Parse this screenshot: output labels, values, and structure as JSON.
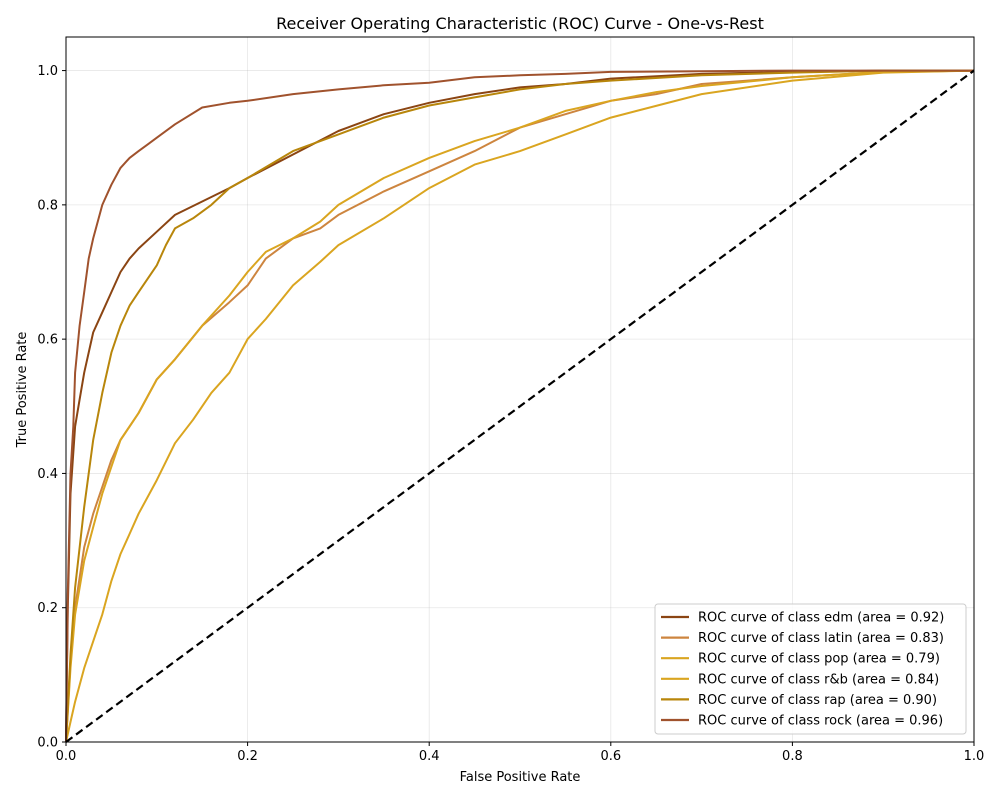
{
  "chart_data": {
    "type": "line",
    "title": "Receiver Operating Characteristic (ROC) Curve - One-vs-Rest",
    "xlabel": "False Positive Rate",
    "ylabel": "True Positive Rate",
    "xlim": [
      0.0,
      1.0
    ],
    "ylim": [
      0.0,
      1.05
    ],
    "xticks": [
      0.0,
      0.2,
      0.4,
      0.6,
      0.8,
      1.0
    ],
    "yticks": [
      0.0,
      0.2,
      0.4,
      0.6,
      0.8,
      1.0
    ],
    "xtick_labels": [
      "0.0",
      "0.2",
      "0.4",
      "0.6",
      "0.8",
      "1.0"
    ],
    "ytick_labels": [
      "0.0",
      "0.2",
      "0.4",
      "0.6",
      "0.8",
      "1.0"
    ],
    "grid": true,
    "legend_position": "bottom-right",
    "diagonal": {
      "x": [
        0.0,
        1.0
      ],
      "y": [
        0.0,
        1.0
      ],
      "color": "#000000",
      "style": "dashed"
    },
    "series": [
      {
        "name": "ROC curve of class edm (area = 0.92)",
        "color": "#8B4513",
        "x": [
          0.0,
          0.002,
          0.005,
          0.01,
          0.015,
          0.02,
          0.03,
          0.04,
          0.05,
          0.06,
          0.07,
          0.08,
          0.1,
          0.12,
          0.15,
          0.18,
          0.2,
          0.25,
          0.3,
          0.35,
          0.4,
          0.45,
          0.5,
          0.55,
          0.6,
          0.7,
          0.8,
          0.9,
          1.0
        ],
        "y": [
          0.0,
          0.2,
          0.37,
          0.47,
          0.51,
          0.55,
          0.61,
          0.64,
          0.67,
          0.7,
          0.72,
          0.735,
          0.76,
          0.785,
          0.805,
          0.825,
          0.84,
          0.875,
          0.91,
          0.935,
          0.952,
          0.965,
          0.975,
          0.98,
          0.988,
          0.995,
          0.998,
          1.0,
          1.0
        ]
      },
      {
        "name": "ROC curve of class latin (area = 0.83)",
        "color": "#CD853F",
        "x": [
          0.0,
          0.005,
          0.01,
          0.02,
          0.03,
          0.04,
          0.05,
          0.06,
          0.07,
          0.08,
          0.1,
          0.12,
          0.15,
          0.18,
          0.2,
          0.22,
          0.25,
          0.28,
          0.3,
          0.35,
          0.4,
          0.45,
          0.5,
          0.55,
          0.6,
          0.65,
          0.7,
          0.8,
          0.9,
          1.0
        ],
        "y": [
          0.0,
          0.12,
          0.2,
          0.29,
          0.34,
          0.38,
          0.42,
          0.45,
          0.47,
          0.49,
          0.54,
          0.57,
          0.62,
          0.655,
          0.68,
          0.72,
          0.75,
          0.765,
          0.785,
          0.82,
          0.85,
          0.88,
          0.915,
          0.935,
          0.955,
          0.965,
          0.98,
          0.99,
          0.998,
          1.0
        ]
      },
      {
        "name": "ROC curve of class pop (area = 0.79)",
        "color": "#DAA520",
        "x": [
          0.0,
          0.005,
          0.01,
          0.02,
          0.03,
          0.04,
          0.05,
          0.06,
          0.07,
          0.08,
          0.1,
          0.12,
          0.14,
          0.16,
          0.18,
          0.2,
          0.22,
          0.25,
          0.28,
          0.3,
          0.35,
          0.4,
          0.45,
          0.5,
          0.55,
          0.6,
          0.7,
          0.8,
          0.9,
          1.0
        ],
        "y": [
          0.0,
          0.03,
          0.06,
          0.11,
          0.15,
          0.19,
          0.24,
          0.28,
          0.31,
          0.34,
          0.39,
          0.445,
          0.48,
          0.52,
          0.55,
          0.6,
          0.63,
          0.68,
          0.715,
          0.74,
          0.78,
          0.825,
          0.86,
          0.88,
          0.905,
          0.93,
          0.965,
          0.985,
          0.997,
          1.0
        ]
      },
      {
        "name": "ROC curve of class r&b (area = 0.84)",
        "color": "#DAA520",
        "x": [
          0.0,
          0.005,
          0.01,
          0.02,
          0.03,
          0.04,
          0.05,
          0.06,
          0.07,
          0.08,
          0.1,
          0.12,
          0.15,
          0.18,
          0.2,
          0.22,
          0.25,
          0.28,
          0.3,
          0.35,
          0.4,
          0.45,
          0.5,
          0.55,
          0.6,
          0.65,
          0.7,
          0.8,
          0.9,
          1.0
        ],
        "y": [
          0.0,
          0.11,
          0.19,
          0.27,
          0.32,
          0.37,
          0.41,
          0.45,
          0.47,
          0.49,
          0.54,
          0.57,
          0.62,
          0.665,
          0.7,
          0.73,
          0.75,
          0.775,
          0.8,
          0.84,
          0.87,
          0.895,
          0.915,
          0.94,
          0.955,
          0.968,
          0.977,
          0.99,
          0.998,
          1.0
        ]
      },
      {
        "name": "ROC curve of class rap (area = 0.90)",
        "color": "#B8860B",
        "x": [
          0.0,
          0.005,
          0.01,
          0.02,
          0.03,
          0.04,
          0.05,
          0.06,
          0.07,
          0.08,
          0.1,
          0.11,
          0.12,
          0.14,
          0.16,
          0.18,
          0.2,
          0.25,
          0.3,
          0.35,
          0.4,
          0.45,
          0.5,
          0.55,
          0.6,
          0.7,
          0.8,
          0.9,
          1.0
        ],
        "y": [
          0.0,
          0.13,
          0.23,
          0.35,
          0.45,
          0.52,
          0.58,
          0.62,
          0.65,
          0.67,
          0.71,
          0.74,
          0.765,
          0.78,
          0.8,
          0.825,
          0.84,
          0.88,
          0.905,
          0.93,
          0.948,
          0.96,
          0.972,
          0.98,
          0.985,
          0.993,
          0.997,
          1.0,
          1.0
        ]
      },
      {
        "name": "ROC curve of class rock (area = 0.96)",
        "color": "#A0522D",
        "x": [
          0.0,
          0.002,
          0.005,
          0.008,
          0.01,
          0.015,
          0.02,
          0.025,
          0.03,
          0.04,
          0.05,
          0.06,
          0.07,
          0.08,
          0.09,
          0.1,
          0.12,
          0.15,
          0.18,
          0.2,
          0.25,
          0.3,
          0.35,
          0.4,
          0.45,
          0.5,
          0.55,
          0.6,
          0.7,
          0.8,
          0.9,
          1.0
        ],
        "y": [
          0.0,
          0.22,
          0.4,
          0.47,
          0.55,
          0.62,
          0.67,
          0.72,
          0.75,
          0.8,
          0.83,
          0.855,
          0.87,
          0.88,
          0.89,
          0.9,
          0.92,
          0.945,
          0.952,
          0.955,
          0.965,
          0.972,
          0.978,
          0.982,
          0.99,
          0.993,
          0.995,
          0.998,
          0.999,
          1.0,
          1.0,
          1.0
        ]
      }
    ]
  }
}
